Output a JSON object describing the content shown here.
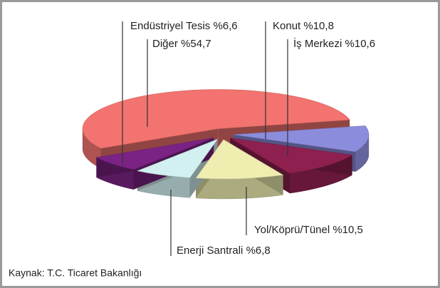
{
  "chart_data": {
    "type": "pie3d",
    "categories": [
      "Diğer",
      "Konut",
      "İş Merkezi",
      "Yol/Köprü/Tünel",
      "Enerji Santrali",
      "Endüstriyel Tesis"
    ],
    "values": [
      54.7,
      10.8,
      10.6,
      10.5,
      6.8,
      6.6
    ],
    "value_labels": [
      "%54,7",
      "%10,8",
      "%10,6",
      "%10,5",
      "%6,8",
      "%6,6"
    ],
    "colors": [
      "#f2736f",
      "#8c8cdc",
      "#8e2050",
      "#efedb0",
      "#d2f0f0",
      "#7b2384"
    ],
    "source": "Kaynak: T.C. Ticaret Bakanlığı"
  }
}
